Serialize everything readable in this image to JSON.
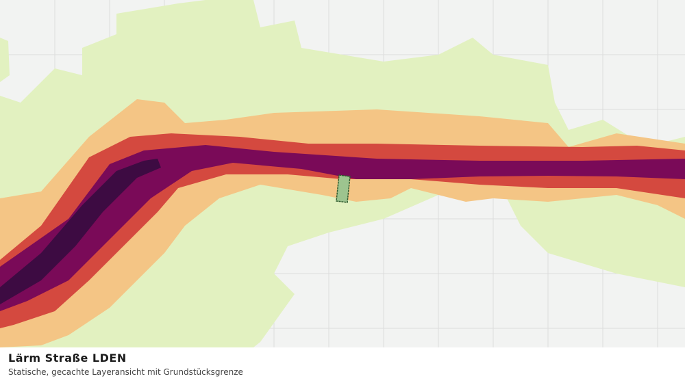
{
  "footer": {
    "title": "Lärm Straße LDEN",
    "subtitle": "Statische, gecachte Layeransicht mit Grundstücksgrenze"
  }
}
